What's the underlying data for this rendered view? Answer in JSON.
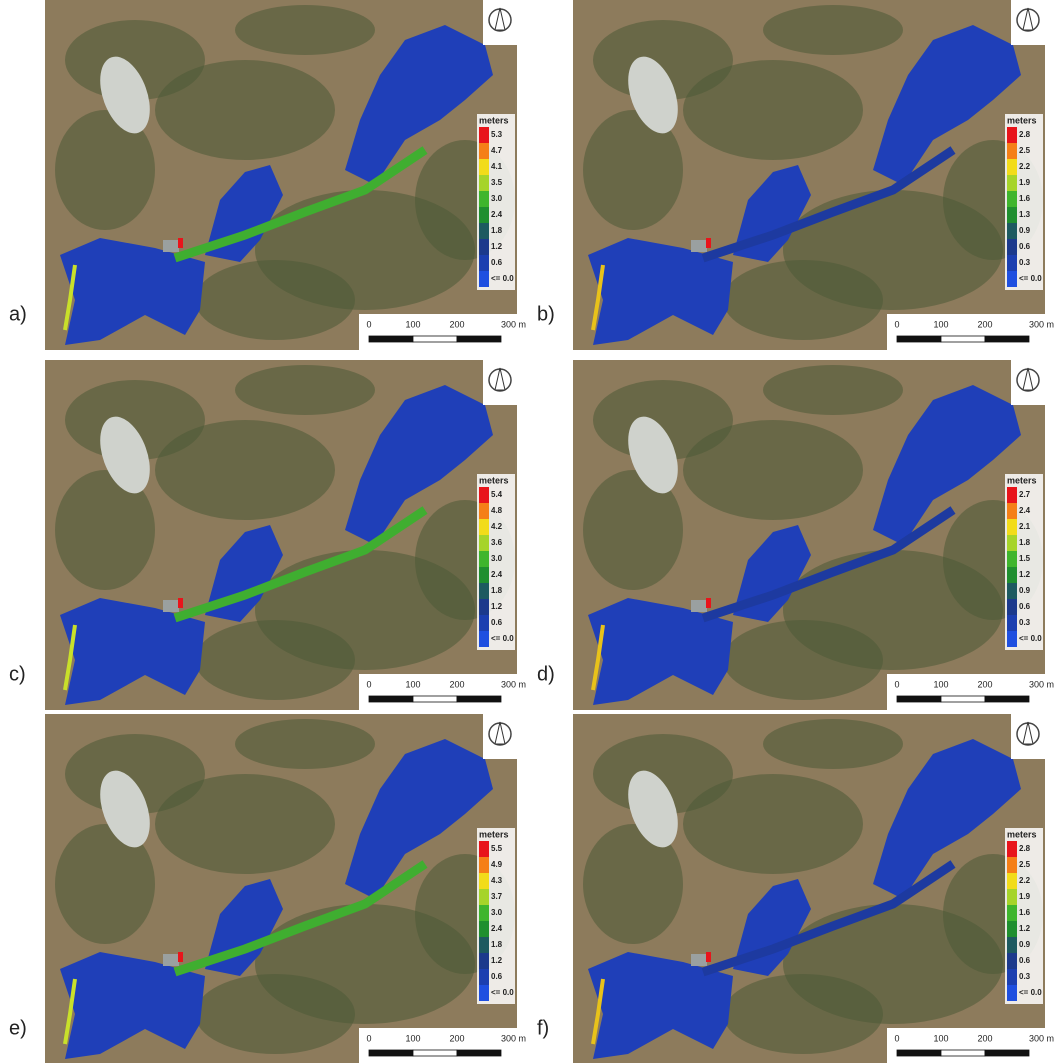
{
  "panels": [
    {
      "label": "a)",
      "legend_title": "meters",
      "legend": [
        "5.3",
        "4.7",
        "4.1",
        "3.5",
        "3.0",
        "2.4",
        "1.8",
        "1.2",
        "0.6",
        "<= 0.0"
      ],
      "scale": [
        "0",
        "100",
        "200",
        "300 m"
      ]
    },
    {
      "label": "b)",
      "legend_title": "meters",
      "legend": [
        "2.8",
        "2.5",
        "2.2",
        "1.9",
        "1.6",
        "1.3",
        "0.9",
        "0.6",
        "0.3",
        "<= 0.0"
      ],
      "scale": [
        "0",
        "100",
        "200",
        "300 m"
      ]
    },
    {
      "label": "c)",
      "legend_title": "meters",
      "legend": [
        "5.4",
        "4.8",
        "4.2",
        "3.6",
        "3.0",
        "2.4",
        "1.8",
        "1.2",
        "0.6",
        "<= 0.0"
      ],
      "scale": [
        "0",
        "100",
        "200",
        "300 m"
      ]
    },
    {
      "label": "d)",
      "legend_title": "meters",
      "legend": [
        "2.7",
        "2.4",
        "2.1",
        "1.8",
        "1.5",
        "1.2",
        "0.9",
        "0.6",
        "0.3",
        "<= 0.0"
      ],
      "scale": [
        "0",
        "100",
        "200",
        "300 m"
      ]
    },
    {
      "label": "e)",
      "legend_title": "meters",
      "legend": [
        "5.5",
        "4.9",
        "4.3",
        "3.7",
        "3.0",
        "2.4",
        "1.8",
        "1.2",
        "0.6",
        "<= 0.0"
      ],
      "scale": [
        "0",
        "100",
        "200",
        "300 m"
      ]
    },
    {
      "label": "f)",
      "legend_title": "meters",
      "legend": [
        "2.8",
        "2.5",
        "2.2",
        "1.9",
        "1.6",
        "1.2",
        "0.9",
        "0.6",
        "0.3",
        "<= 0.0"
      ],
      "scale": [
        "0",
        "100",
        "200",
        "300 m"
      ]
    }
  ]
}
